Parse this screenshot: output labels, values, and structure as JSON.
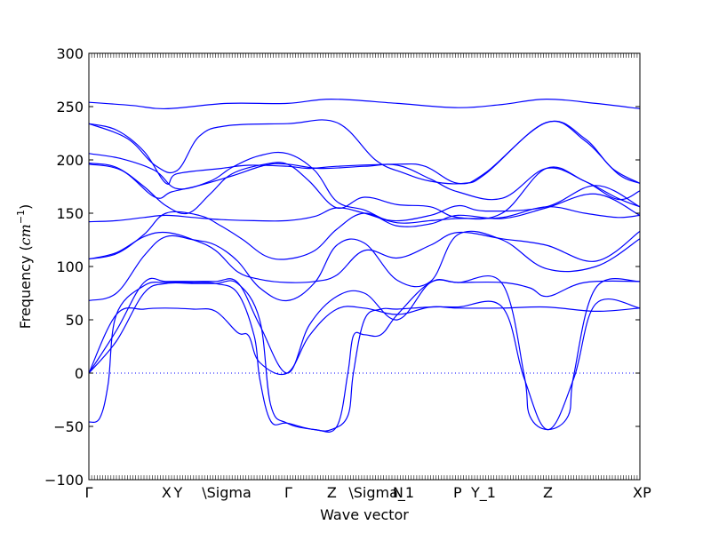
{
  "chart_data": {
    "type": "line",
    "xlabel": "Wave vector",
    "ylabel": "Frequency ($cm^{-1}$)",
    "ylabel_text": "Frequency (",
    "ylabel_unit_base": "cm",
    "ylabel_unit_exp": "−1",
    "ylabel_close": ")",
    "ylim": [
      -100,
      300
    ],
    "yticks": [
      300,
      250,
      200,
      150,
      100,
      50,
      0,
      -50,
      -100
    ],
    "ytick_labels": [
      "300",
      "250",
      "200",
      "150",
      "100",
      "50",
      "0",
      "−50",
      "−100"
    ],
    "xlim": [
      0,
      1
    ],
    "xticks": [
      {
        "label": "Γ",
        "x": 0.0
      },
      {
        "label": "X",
        "x": 0.141
      },
      {
        "label": "Y",
        "x": 0.162
      },
      {
        "label": "\\Sigma",
        "x": 0.25
      },
      {
        "label": "Γ",
        "x": 0.362
      },
      {
        "label": "Z",
        "x": 0.441
      },
      {
        "label": "\\Sigma_1",
        "x": 0.531
      },
      {
        "label": "N",
        "x": 0.561
      },
      {
        "label": "P",
        "x": 0.669
      },
      {
        "label": "Y_1",
        "x": 0.716
      },
      {
        "label": "Z",
        "x": 0.833
      },
      {
        "label": "X",
        "x": 0.996
      },
      {
        "label": "P",
        "x": 1.03
      }
    ],
    "zero_line": {
      "y": 0,
      "style": "dotted"
    },
    "series": [
      {
        "points": [
          [
            0,
            254
          ],
          [
            0.08,
            251
          ],
          [
            0.14,
            248
          ],
          [
            0.25,
            253
          ],
          [
            0.36,
            253
          ],
          [
            0.44,
            257
          ],
          [
            0.56,
            253
          ],
          [
            0.67,
            249
          ],
          [
            0.75,
            252
          ],
          [
            0.83,
            257
          ],
          [
            0.92,
            253
          ],
          [
            1.0,
            248
          ]
        ]
      },
      {
        "points": [
          [
            0,
            234
          ],
          [
            0.05,
            228
          ],
          [
            0.1,
            208
          ],
          [
            0.14,
            178
          ],
          [
            0.16,
            187
          ],
          [
            0.24,
            192
          ],
          [
            0.29,
            195
          ],
          [
            0.36,
            194
          ],
          [
            0.4,
            192
          ],
          [
            0.45,
            194
          ],
          [
            0.56,
            196
          ],
          [
            0.61,
            194
          ],
          [
            0.67,
            178
          ],
          [
            0.72,
            188
          ],
          [
            0.83,
            235
          ],
          [
            0.9,
            220
          ],
          [
            0.95,
            192
          ],
          [
            1.0,
            178
          ]
        ]
      },
      {
        "points": [
          [
            0,
            234
          ],
          [
            0.07,
            220
          ],
          [
            0.12,
            195
          ],
          [
            0.16,
            190
          ],
          [
            0.2,
            222
          ],
          [
            0.25,
            232
          ],
          [
            0.36,
            234
          ],
          [
            0.45,
            235
          ],
          [
            0.52,
            200
          ],
          [
            0.57,
            188
          ],
          [
            0.62,
            180
          ],
          [
            0.68,
            178
          ],
          [
            0.72,
            187
          ],
          [
            0.83,
            235
          ],
          [
            0.9,
            218
          ],
          [
            0.96,
            187
          ],
          [
            1.0,
            178
          ]
        ]
      },
      {
        "points": [
          [
            0,
            206
          ],
          [
            0.06,
            201
          ],
          [
            0.12,
            190
          ],
          [
            0.16,
            173
          ],
          [
            0.22,
            180
          ],
          [
            0.26,
            193
          ],
          [
            0.31,
            204
          ],
          [
            0.36,
            206
          ],
          [
            0.41,
            190
          ],
          [
            0.45,
            161
          ],
          [
            0.5,
            153
          ],
          [
            0.55,
            143
          ],
          [
            0.62,
            148
          ],
          [
            0.67,
            157
          ],
          [
            0.72,
            152
          ],
          [
            0.83,
            156
          ],
          [
            0.92,
            176
          ],
          [
            1.0,
            156
          ]
        ]
      },
      {
        "points": [
          [
            0,
            197
          ],
          [
            0.05,
            193
          ],
          [
            0.1,
            175
          ],
          [
            0.14,
            157
          ],
          [
            0.18,
            150
          ],
          [
            0.22,
            168
          ],
          [
            0.26,
            187
          ],
          [
            0.32,
            196
          ],
          [
            0.36,
            196
          ],
          [
            0.4,
            180
          ],
          [
            0.45,
            155
          ],
          [
            0.5,
            165
          ],
          [
            0.56,
            158
          ],
          [
            0.62,
            156
          ],
          [
            0.67,
            146
          ],
          [
            0.75,
            150
          ],
          [
            0.83,
            192
          ],
          [
            0.9,
            180
          ],
          [
            0.96,
            164
          ],
          [
            1.0,
            156
          ]
        ]
      },
      {
        "points": [
          [
            0,
            196
          ],
          [
            0.06,
            190
          ],
          [
            0.12,
            165
          ],
          [
            0.15,
            170
          ],
          [
            0.2,
            176
          ],
          [
            0.26,
            185
          ],
          [
            0.32,
            195
          ],
          [
            0.36,
            196
          ],
          [
            0.42,
            192
          ],
          [
            0.5,
            194
          ],
          [
            0.56,
            195
          ],
          [
            0.62,
            182
          ],
          [
            0.67,
            170
          ],
          [
            0.75,
            164
          ],
          [
            0.83,
            192
          ],
          [
            0.9,
            180
          ],
          [
            0.96,
            163
          ],
          [
            1.0,
            171
          ]
        ]
      },
      {
        "points": [
          [
            0,
            142
          ],
          [
            0.05,
            143
          ],
          [
            0.1,
            146
          ],
          [
            0.14,
            148
          ],
          [
            0.19,
            146
          ],
          [
            0.24,
            144
          ],
          [
            0.3,
            143
          ],
          [
            0.36,
            143
          ],
          [
            0.41,
            147
          ],
          [
            0.45,
            155
          ],
          [
            0.5,
            150
          ],
          [
            0.56,
            141
          ],
          [
            0.62,
            143
          ],
          [
            0.67,
            145
          ],
          [
            0.75,
            146
          ],
          [
            0.83,
            156
          ],
          [
            0.9,
            150
          ],
          [
            0.96,
            146
          ],
          [
            1.0,
            148
          ]
        ]
      },
      {
        "points": [
          [
            0,
            107
          ],
          [
            0.05,
            112
          ],
          [
            0.1,
            130
          ],
          [
            0.14,
            150
          ],
          [
            0.2,
            148
          ],
          [
            0.24,
            138
          ],
          [
            0.28,
            125
          ],
          [
            0.32,
            110
          ],
          [
            0.36,
            107
          ],
          [
            0.41,
            115
          ],
          [
            0.45,
            135
          ],
          [
            0.5,
            150
          ],
          [
            0.56,
            138
          ],
          [
            0.62,
            140
          ],
          [
            0.67,
            148
          ],
          [
            0.75,
            145
          ],
          [
            0.83,
            155
          ],
          [
            0.92,
            168
          ],
          [
            1.0,
            148
          ]
        ]
      },
      {
        "points": [
          [
            0,
            107
          ],
          [
            0.05,
            113
          ],
          [
            0.1,
            128
          ],
          [
            0.14,
            132
          ],
          [
            0.19,
            125
          ],
          [
            0.23,
            115
          ],
          [
            0.27,
            95
          ],
          [
            0.31,
            88
          ],
          [
            0.36,
            85
          ],
          [
            0.41,
            86
          ],
          [
            0.45,
            92
          ],
          [
            0.5,
            115
          ],
          [
            0.56,
            108
          ],
          [
            0.62,
            120
          ],
          [
            0.67,
            132
          ],
          [
            0.75,
            126
          ],
          [
            0.83,
            120
          ],
          [
            0.92,
            105
          ],
          [
            1.0,
            133
          ]
        ]
      },
      {
        "points": [
          [
            0,
            68
          ],
          [
            0.05,
            75
          ],
          [
            0.1,
            110
          ],
          [
            0.14,
            128
          ],
          [
            0.19,
            125
          ],
          [
            0.23,
            120
          ],
          [
            0.27,
            105
          ],
          [
            0.31,
            80
          ],
          [
            0.36,
            68
          ],
          [
            0.41,
            85
          ],
          [
            0.45,
            120
          ],
          [
            0.5,
            122
          ],
          [
            0.56,
            87
          ],
          [
            0.62,
            86
          ],
          [
            0.67,
            130
          ],
          [
            0.75,
            125
          ],
          [
            0.83,
            98
          ],
          [
            0.92,
            100
          ],
          [
            1.0,
            126
          ]
        ]
      },
      {
        "points": [
          [
            0,
            0
          ],
          [
            0.05,
            40
          ],
          [
            0.1,
            85
          ],
          [
            0.14,
            86
          ],
          [
            0.19,
            86
          ],
          [
            0.23,
            86
          ],
          [
            0.27,
            85
          ],
          [
            0.31,
            45
          ],
          [
            0.36,
            0
          ],
          [
            0.4,
            45
          ],
          [
            0.45,
            72
          ],
          [
            0.5,
            75
          ],
          [
            0.56,
            50
          ],
          [
            0.62,
            85
          ],
          [
            0.67,
            85
          ],
          [
            0.75,
            85
          ],
          [
            0.8,
            80
          ],
          [
            0.833,
            72
          ],
          [
            0.9,
            85
          ],
          [
            1.0,
            86
          ]
        ]
      },
      {
        "points": [
          [
            0,
            0
          ],
          [
            0.05,
            55
          ],
          [
            0.1,
            60
          ],
          [
            0.14,
            61
          ],
          [
            0.19,
            60
          ],
          [
            0.23,
            58
          ],
          [
            0.27,
            38
          ],
          [
            0.29,
            35
          ],
          [
            0.31,
            10
          ],
          [
            0.36,
            0
          ],
          [
            0.4,
            35
          ],
          [
            0.45,
            60
          ],
          [
            0.5,
            61
          ],
          [
            0.56,
            55
          ],
          [
            0.62,
            62
          ],
          [
            0.67,
            61
          ],
          [
            0.75,
            61
          ],
          [
            0.83,
            62
          ],
          [
            0.92,
            58
          ],
          [
            1.0,
            61
          ]
        ]
      },
      {
        "points": [
          [
            0,
            -46
          ],
          [
            0.02,
            -42
          ],
          [
            0.035,
            -10
          ],
          [
            0.05,
            55
          ],
          [
            0.1,
            82
          ],
          [
            0.14,
            85
          ],
          [
            0.19,
            85
          ],
          [
            0.23,
            84
          ],
          [
            0.27,
            75
          ],
          [
            0.3,
            35
          ],
          [
            0.31,
            -5
          ],
          [
            0.33,
            -45
          ],
          [
            0.36,
            -47
          ],
          [
            0.41,
            -53
          ],
          [
            0.45,
            -50
          ],
          [
            0.47,
            0
          ],
          [
            0.48,
            35
          ],
          [
            0.5,
            36
          ],
          [
            0.53,
            36
          ],
          [
            0.56,
            55
          ],
          [
            0.62,
            85
          ],
          [
            0.67,
            85
          ],
          [
            0.75,
            84
          ],
          [
            0.79,
            -2
          ],
          [
            0.8,
            -40
          ],
          [
            0.833,
            -53
          ],
          [
            0.87,
            -40
          ],
          [
            0.88,
            -2
          ],
          [
            0.92,
            80
          ],
          [
            1.0,
            86
          ]
        ]
      },
      {
        "points": [
          [
            0,
            0
          ],
          [
            0.05,
            30
          ],
          [
            0.1,
            75
          ],
          [
            0.14,
            84
          ],
          [
            0.19,
            84
          ],
          [
            0.23,
            84
          ],
          [
            0.27,
            84
          ],
          [
            0.31,
            50
          ],
          [
            0.33,
            -30
          ],
          [
            0.36,
            -47
          ],
          [
            0.41,
            -53
          ],
          [
            0.44,
            -53
          ],
          [
            0.47,
            -40
          ],
          [
            0.48,
            0
          ],
          [
            0.5,
            50
          ],
          [
            0.53,
            60
          ],
          [
            0.56,
            60
          ],
          [
            0.62,
            62
          ],
          [
            0.67,
            62
          ],
          [
            0.75,
            62
          ],
          [
            0.79,
            -5
          ],
          [
            0.833,
            -53
          ],
          [
            0.88,
            -5
          ],
          [
            0.92,
            65
          ],
          [
            1.0,
            61
          ]
        ]
      }
    ]
  }
}
